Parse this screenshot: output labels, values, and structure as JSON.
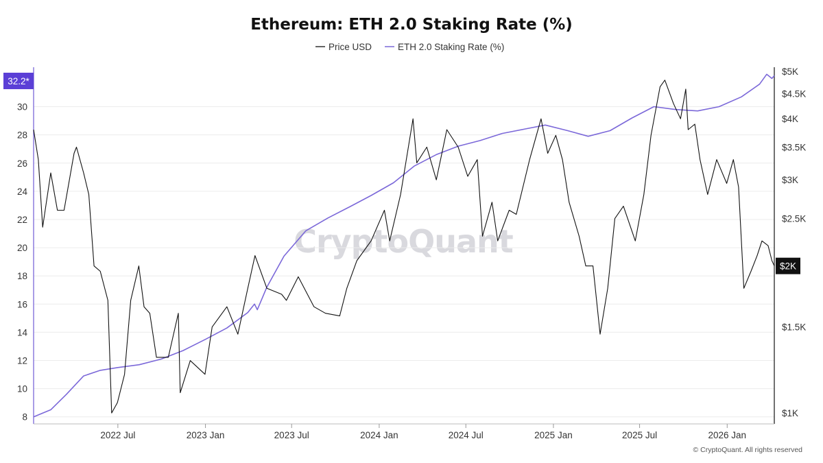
{
  "chart_data": {
    "type": "line",
    "title": "Ethereum: ETH 2.0 Staking Rate (%)",
    "watermark": "CryptoQuant",
    "footer": "© CryptoQuant. All rights reserved",
    "legend": [
      {
        "name": "Price USD",
        "color": "#111111"
      },
      {
        "name": "ETH 2.0 Staking Rate (%)",
        "color": "#7b68d9"
      }
    ],
    "x_ticks": [
      "2022 Jul",
      "2023 Jan",
      "2023 Jul",
      "2024 Jan",
      "2024 Jul",
      "2025 Jan",
      "2025 Jul",
      "2026 Jan"
    ],
    "x_range": [
      "2022-01-05",
      "2026-04-10"
    ],
    "y_left": {
      "ticks": [
        "8",
        "10",
        "12",
        "14",
        "16",
        "18",
        "20",
        "22",
        "24",
        "26",
        "28",
        "30"
      ],
      "range": [
        7.5,
        32.8
      ]
    },
    "y_right": {
      "scale": "log",
      "ticks": [
        "$1K",
        "$1.5K",
        "$2K",
        "$2.5K",
        "$3K",
        "$3.5K",
        "$4K",
        "$4.5K",
        "$5K"
      ],
      "tick_values": [
        1000,
        1500,
        2000,
        2500,
        3000,
        3500,
        4000,
        4500,
        5000
      ],
      "range": [
        950,
        5100
      ]
    },
    "last_value_left": "32.2*",
    "last_value_right": "$2K",
    "series": [
      {
        "name": "ETH 2.0 Staking Rate (%)",
        "axis": "left",
        "color": "#7b68d9",
        "points": [
          [
            "2022-01-05",
            8.0
          ],
          [
            "2022-02-10",
            8.5
          ],
          [
            "2022-03-15",
            9.6
          ],
          [
            "2022-04-20",
            10.9
          ],
          [
            "2022-05-25",
            11.3
          ],
          [
            "2022-07-01",
            11.5
          ],
          [
            "2022-08-15",
            11.7
          ],
          [
            "2022-09-30",
            12.1
          ],
          [
            "2022-11-15",
            12.7
          ],
          [
            "2023-01-01",
            13.5
          ],
          [
            "2023-02-15",
            14.3
          ],
          [
            "2023-03-31",
            15.4
          ],
          [
            "2023-04-14",
            16.0
          ],
          [
            "2023-04-20",
            15.6
          ],
          [
            "2023-05-10",
            17.2
          ],
          [
            "2023-06-15",
            19.4
          ],
          [
            "2023-07-31",
            21.2
          ],
          [
            "2023-09-15",
            22.1
          ],
          [
            "2023-10-31",
            22.9
          ],
          [
            "2023-12-15",
            23.7
          ],
          [
            "2024-01-31",
            24.6
          ],
          [
            "2024-03-15",
            25.8
          ],
          [
            "2024-04-30",
            26.6
          ],
          [
            "2024-06-15",
            27.2
          ],
          [
            "2024-07-31",
            27.6
          ],
          [
            "2024-09-15",
            28.1
          ],
          [
            "2024-10-31",
            28.4
          ],
          [
            "2024-12-15",
            28.7
          ],
          [
            "2025-01-31",
            28.3
          ],
          [
            "2025-03-15",
            27.9
          ],
          [
            "2025-04-30",
            28.3
          ],
          [
            "2025-06-15",
            29.2
          ],
          [
            "2025-07-31",
            30.0
          ],
          [
            "2025-09-15",
            29.8
          ],
          [
            "2025-10-31",
            29.7
          ],
          [
            "2025-12-15",
            30.0
          ],
          [
            "2026-01-31",
            30.7
          ],
          [
            "2026-03-10",
            31.6
          ],
          [
            "2026-03-25",
            32.3
          ],
          [
            "2026-04-05",
            32.0
          ],
          [
            "2026-04-10",
            32.2
          ]
        ]
      },
      {
        "name": "Price USD",
        "axis": "right",
        "color": "#111111",
        "points": [
          [
            "2022-01-05",
            3800
          ],
          [
            "2022-01-15",
            3300
          ],
          [
            "2022-01-24",
            2400
          ],
          [
            "2022-02-10",
            3100
          ],
          [
            "2022-02-24",
            2600
          ],
          [
            "2022-03-10",
            2600
          ],
          [
            "2022-03-31",
            3400
          ],
          [
            "2022-04-05",
            3500
          ],
          [
            "2022-04-20",
            3100
          ],
          [
            "2022-05-01",
            2800
          ],
          [
            "2022-05-12",
            2000
          ],
          [
            "2022-05-25",
            1950
          ],
          [
            "2022-06-10",
            1700
          ],
          [
            "2022-06-18",
            1000
          ],
          [
            "2022-06-30",
            1050
          ],
          [
            "2022-07-15",
            1200
          ],
          [
            "2022-07-28",
            1700
          ],
          [
            "2022-08-14",
            2000
          ],
          [
            "2022-08-25",
            1650
          ],
          [
            "2022-09-06",
            1600
          ],
          [
            "2022-09-20",
            1300
          ],
          [
            "2022-10-15",
            1300
          ],
          [
            "2022-11-05",
            1600
          ],
          [
            "2022-11-09",
            1100
          ],
          [
            "2022-11-30",
            1280
          ],
          [
            "2022-12-31",
            1200
          ],
          [
            "2023-01-15",
            1500
          ],
          [
            "2023-02-15",
            1650
          ],
          [
            "2023-03-10",
            1450
          ],
          [
            "2023-03-31",
            1800
          ],
          [
            "2023-04-15",
            2100
          ],
          [
            "2023-05-10",
            1800
          ],
          [
            "2023-06-10",
            1750
          ],
          [
            "2023-06-20",
            1700
          ],
          [
            "2023-07-15",
            1900
          ],
          [
            "2023-08-17",
            1650
          ],
          [
            "2023-09-10",
            1600
          ],
          [
            "2023-10-10",
            1580
          ],
          [
            "2023-10-25",
            1800
          ],
          [
            "2023-11-15",
            2050
          ],
          [
            "2023-12-15",
            2250
          ],
          [
            "2024-01-12",
            2600
          ],
          [
            "2024-01-23",
            2250
          ],
          [
            "2024-02-15",
            2800
          ],
          [
            "2024-03-12",
            4000
          ],
          [
            "2024-03-20",
            3250
          ],
          [
            "2024-04-10",
            3500
          ],
          [
            "2024-04-30",
            3000
          ],
          [
            "2024-05-22",
            3800
          ],
          [
            "2024-06-15",
            3500
          ],
          [
            "2024-07-05",
            3050
          ],
          [
            "2024-07-25",
            3300
          ],
          [
            "2024-08-05",
            2300
          ],
          [
            "2024-08-25",
            2700
          ],
          [
            "2024-09-06",
            2250
          ],
          [
            "2024-09-30",
            2600
          ],
          [
            "2024-10-15",
            2550
          ],
          [
            "2024-11-12",
            3300
          ],
          [
            "2024-12-06",
            4000
          ],
          [
            "2024-12-20",
            3400
          ],
          [
            "2025-01-06",
            3700
          ],
          [
            "2025-01-20",
            3300
          ],
          [
            "2025-02-03",
            2700
          ],
          [
            "2025-02-24",
            2300
          ],
          [
            "2025-03-10",
            2000
          ],
          [
            "2025-03-25",
            2000
          ],
          [
            "2025-04-09",
            1450
          ],
          [
            "2025-04-25",
            1800
          ],
          [
            "2025-05-10",
            2500
          ],
          [
            "2025-05-28",
            2650
          ],
          [
            "2025-06-22",
            2250
          ],
          [
            "2025-07-10",
            2800
          ],
          [
            "2025-07-25",
            3700
          ],
          [
            "2025-08-13",
            4650
          ],
          [
            "2025-08-23",
            4800
          ],
          [
            "2025-09-10",
            4300
          ],
          [
            "2025-09-25",
            4000
          ],
          [
            "2025-10-06",
            4600
          ],
          [
            "2025-10-11",
            3800
          ],
          [
            "2025-10-25",
            3900
          ],
          [
            "2025-11-05",
            3300
          ],
          [
            "2025-11-21",
            2800
          ],
          [
            "2025-12-10",
            3300
          ],
          [
            "2025-12-31",
            2950
          ],
          [
            "2026-01-14",
            3300
          ],
          [
            "2026-01-25",
            2900
          ],
          [
            "2026-02-05",
            1800
          ],
          [
            "2026-02-20",
            1950
          ],
          [
            "2026-03-05",
            2100
          ],
          [
            "2026-03-15",
            2250
          ],
          [
            "2026-03-28",
            2200
          ],
          [
            "2026-04-05",
            2050
          ],
          [
            "2026-04-10",
            2000
          ]
        ]
      }
    ]
  }
}
